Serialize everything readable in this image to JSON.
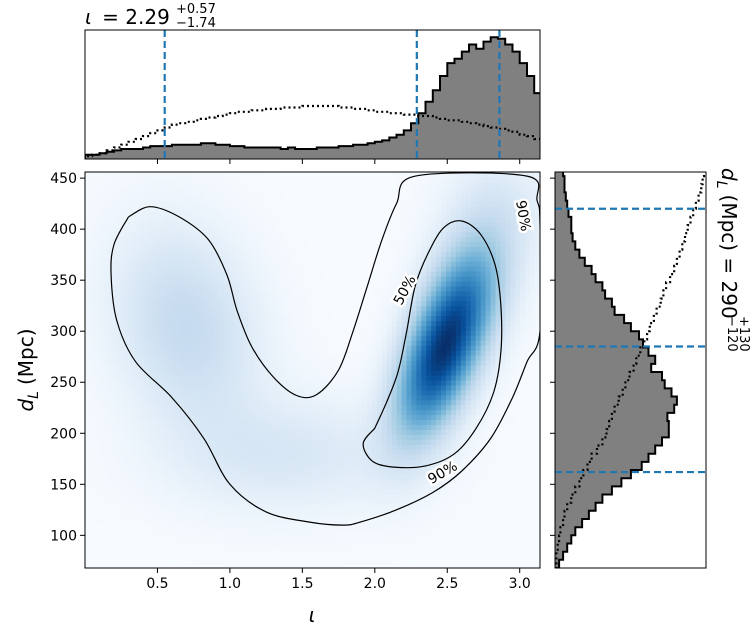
{
  "chart_data": [
    {
      "id": "joint",
      "type": "heatmap",
      "xlabel": "ι",
      "ylabel_var": "d",
      "ylabel_sub": "L",
      "ylabel_unit": "(Mpc)",
      "xlim": [
        0.0,
        3.14
      ],
      "ylim": [
        68,
        456
      ],
      "x_ticks": [
        0.5,
        1.0,
        1.5,
        2.0,
        2.5,
        3.0
      ],
      "x_tick_labels": [
        "0.5",
        "1.0",
        "1.5",
        "2.0",
        "2.5",
        "3.0"
      ],
      "y_ticks": [
        100,
        150,
        200,
        250,
        300,
        350,
        400,
        450
      ],
      "y_tick_labels": [
        "100",
        "150",
        "200",
        "250",
        "300",
        "350",
        "400",
        "450"
      ],
      "colormap": "Blues",
      "density_components": [
        {
          "x": 2.45,
          "y": 275,
          "sx": 0.2,
          "sy": 52,
          "rho": 0.55,
          "w": 1.0
        },
        {
          "x": 2.65,
          "y": 340,
          "sx": 0.2,
          "sy": 45,
          "rho": 0.3,
          "w": 0.35
        },
        {
          "x": 0.7,
          "y": 305,
          "sx": 0.33,
          "sy": 65,
          "rho": -0.2,
          "w": 0.22
        },
        {
          "x": 1.4,
          "y": 180,
          "sx": 0.55,
          "sy": 38,
          "rho": 0.0,
          "w": 0.12
        },
        {
          "x": 2.85,
          "y": 420,
          "sx": 0.25,
          "sy": 40,
          "rho": 0.0,
          "w": 0.1
        }
      ],
      "contours": [
        {
          "level": "90%",
          "points": [
            [
              0.3,
              412
            ],
            [
              0.45,
              422
            ],
            [
              0.65,
              412
            ],
            [
              0.85,
              390
            ],
            [
              0.98,
              355
            ],
            [
              1.05,
              320
            ],
            [
              1.15,
              285
            ],
            [
              1.3,
              255
            ],
            [
              1.46,
              237
            ],
            [
              1.6,
              238
            ],
            [
              1.75,
              262
            ],
            [
              1.85,
              300
            ],
            [
              1.95,
              345
            ],
            [
              2.05,
              390
            ],
            [
              2.15,
              425
            ],
            [
              2.28,
              452
            ],
            [
              3.05,
              452
            ],
            [
              3.12,
              428
            ],
            [
              3.14,
              405
            ],
            [
              3.14,
              300
            ],
            [
              3.05,
              270
            ],
            [
              2.95,
              235
            ],
            [
              2.8,
              195
            ],
            [
              2.6,
              163
            ],
            [
              2.4,
              142
            ],
            [
              2.15,
              125
            ],
            [
              1.9,
              113
            ],
            [
              1.78,
              110
            ],
            [
              1.55,
              113
            ],
            [
              1.25,
              123
            ],
            [
              1.0,
              150
            ],
            [
              0.82,
              195
            ],
            [
              0.6,
              235
            ],
            [
              0.35,
              270
            ],
            [
              0.22,
              310
            ],
            [
              0.18,
              355
            ],
            [
              0.2,
              385
            ],
            [
              0.3,
              412
            ]
          ],
          "label_at": [
            2.47,
            161
          ],
          "label_angle": -30
        },
        {
          "level": "50%",
          "points": [
            [
              2.0,
              205
            ],
            [
              1.92,
              190
            ],
            [
              1.98,
              173
            ],
            [
              2.12,
              167
            ],
            [
              2.35,
              168
            ],
            [
              2.55,
              180
            ],
            [
              2.7,
              205
            ],
            [
              2.82,
              240
            ],
            [
              2.87,
              280
            ],
            [
              2.87,
              325
            ],
            [
              2.83,
              365
            ],
            [
              2.73,
              395
            ],
            [
              2.6,
              408
            ],
            [
              2.48,
              402
            ],
            [
              2.38,
              380
            ],
            [
              2.28,
              345
            ],
            [
              2.22,
              300
            ],
            [
              2.16,
              260
            ],
            [
              2.08,
              230
            ],
            [
              2.0,
              205
            ]
          ],
          "label_at": [
            2.21,
            340
          ],
          "label_angle": -62
        }
      ],
      "extra_label": {
        "text": "90%",
        "at": [
          3.02,
          413
        ],
        "angle": 80
      }
    },
    {
      "id": "top-marginal",
      "type": "area",
      "title_var": "ι",
      "title_value": "= 2.29",
      "title_sup": "+0.57",
      "title_sub": "−1.74",
      "x_start": 0.0,
      "bin_width": 0.05,
      "posterior_counts": [
        3,
        3,
        4,
        5,
        6,
        7,
        7,
        7,
        8,
        9,
        9,
        9,
        10,
        10,
        10,
        10,
        11,
        11,
        10,
        10,
        9,
        9,
        8,
        8,
        8,
        8,
        8,
        7,
        8,
        7,
        7,
        7,
        8,
        8,
        8,
        9,
        9,
        10,
        10,
        11,
        12,
        13,
        15,
        17,
        20,
        25,
        32,
        40,
        48,
        58,
        67,
        70,
        75,
        80,
        77,
        82,
        85,
        84,
        80,
        75,
        67,
        58,
        46,
        37,
        30,
        25,
        20,
        17,
        13,
        10
      ],
      "prior_counts": [
        2,
        3,
        4,
        6,
        8,
        10,
        12,
        14,
        16,
        18,
        20,
        22,
        24,
        25,
        26,
        27,
        28,
        29,
        30,
        31,
        32,
        33,
        33,
        34,
        34,
        35,
        35,
        36,
        36,
        36,
        37,
        37,
        37,
        37,
        37,
        36,
        36,
        35,
        35,
        34,
        33,
        33,
        32,
        32,
        31,
        31,
        30,
        30,
        29,
        28,
        27,
        27,
        26,
        25,
        24,
        23,
        22,
        21,
        20,
        19,
        17,
        16,
        14,
        12,
        10,
        8,
        6,
        4,
        3,
        2
      ],
      "vlines": [
        0.55,
        2.29,
        2.86
      ]
    },
    {
      "id": "right-marginal",
      "type": "area",
      "ylabel_var": "d",
      "ylabel_sub": "L",
      "ylabel_rest": "(Mpc) = 290",
      "ylabel_sup": "+130",
      "ylabel_subscript": "−120",
      "y_start": 68,
      "bin_width": 8,
      "posterior_counts": [
        3,
        6,
        9,
        12,
        15,
        20,
        25,
        30,
        35,
        42,
        49,
        56,
        64,
        69,
        74,
        79,
        84,
        84,
        83,
        88,
        90,
        86,
        81,
        79,
        71,
        74,
        69,
        65,
        62,
        56,
        51,
        44,
        42,
        37,
        35,
        30,
        27,
        22,
        18,
        15,
        13,
        12,
        12,
        10,
        9,
        8,
        7,
        7,
        6
      ],
      "prior_counts": [
        1,
        1,
        2,
        3,
        4,
        6,
        7,
        9,
        12,
        15,
        18,
        21,
        24,
        27,
        31,
        35,
        38,
        40,
        42,
        44,
        47,
        50,
        52,
        55,
        58,
        60,
        63,
        66,
        68,
        70,
        73,
        75,
        78,
        80,
        82,
        85,
        88,
        90,
        92,
        94,
        96,
        98,
        100,
        102,
        104,
        106,
        108,
        109,
        110
      ],
      "hlines": [
        162,
        285,
        420
      ]
    }
  ]
}
